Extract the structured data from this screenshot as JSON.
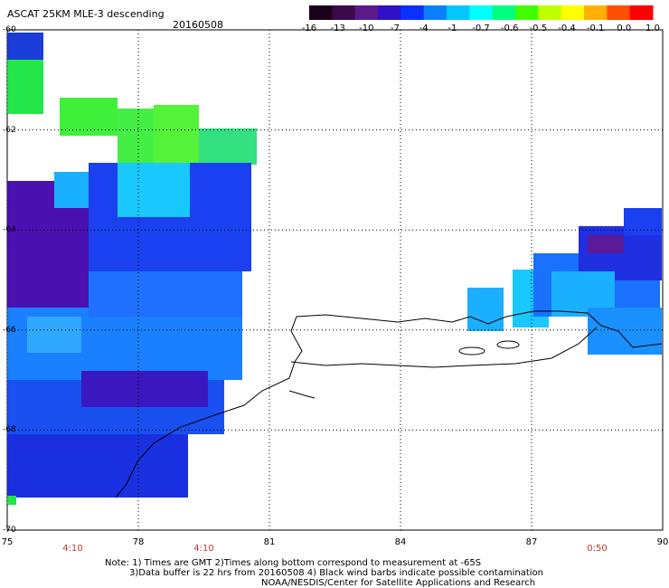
{
  "title": "ASCAT 25KM MLE-3 descending",
  "date": "20160508",
  "colorbar": {
    "labels": [
      "-16",
      "-13",
      "-10",
      "-7",
      "-4",
      "-1",
      "-0.7",
      "-0.6",
      "-0.5",
      "-0.4",
      "-0.1",
      "0.0",
      "1.0"
    ],
    "colors": [
      "#1a001a",
      "#3a0a4a",
      "#5a1a8a",
      "#3010c8",
      "#0a30ff",
      "#0a80ff",
      "#00c8ff",
      "#00ffff",
      "#00ff80",
      "#40ff00",
      "#c0ff00",
      "#ffff00",
      "#ffb000",
      "#ff5000",
      "#ff0000"
    ]
  },
  "map": {
    "lat_labels": [
      "-60",
      "-62",
      "-64",
      "-66",
      "-68",
      "-70"
    ],
    "lon_labels": [
      "75",
      "78",
      "81",
      "84",
      "87",
      "90"
    ],
    "time_labels": [
      "4:10",
      "4:10",
      "0:50"
    ],
    "lon_range": [
      75,
      90
    ],
    "lat_range": [
      -60,
      -70
    ]
  },
  "notes": {
    "line1": "Note: 1) Times are GMT 2)Times along bottom correspond to measurement at -65S",
    "line2": "3)Data buffer is 22 hrs from 20160508 4) Black wind barbs indicate possible contamination",
    "line3": "NOAA/NESDIS/Center for Satellite Applications and Research"
  }
}
